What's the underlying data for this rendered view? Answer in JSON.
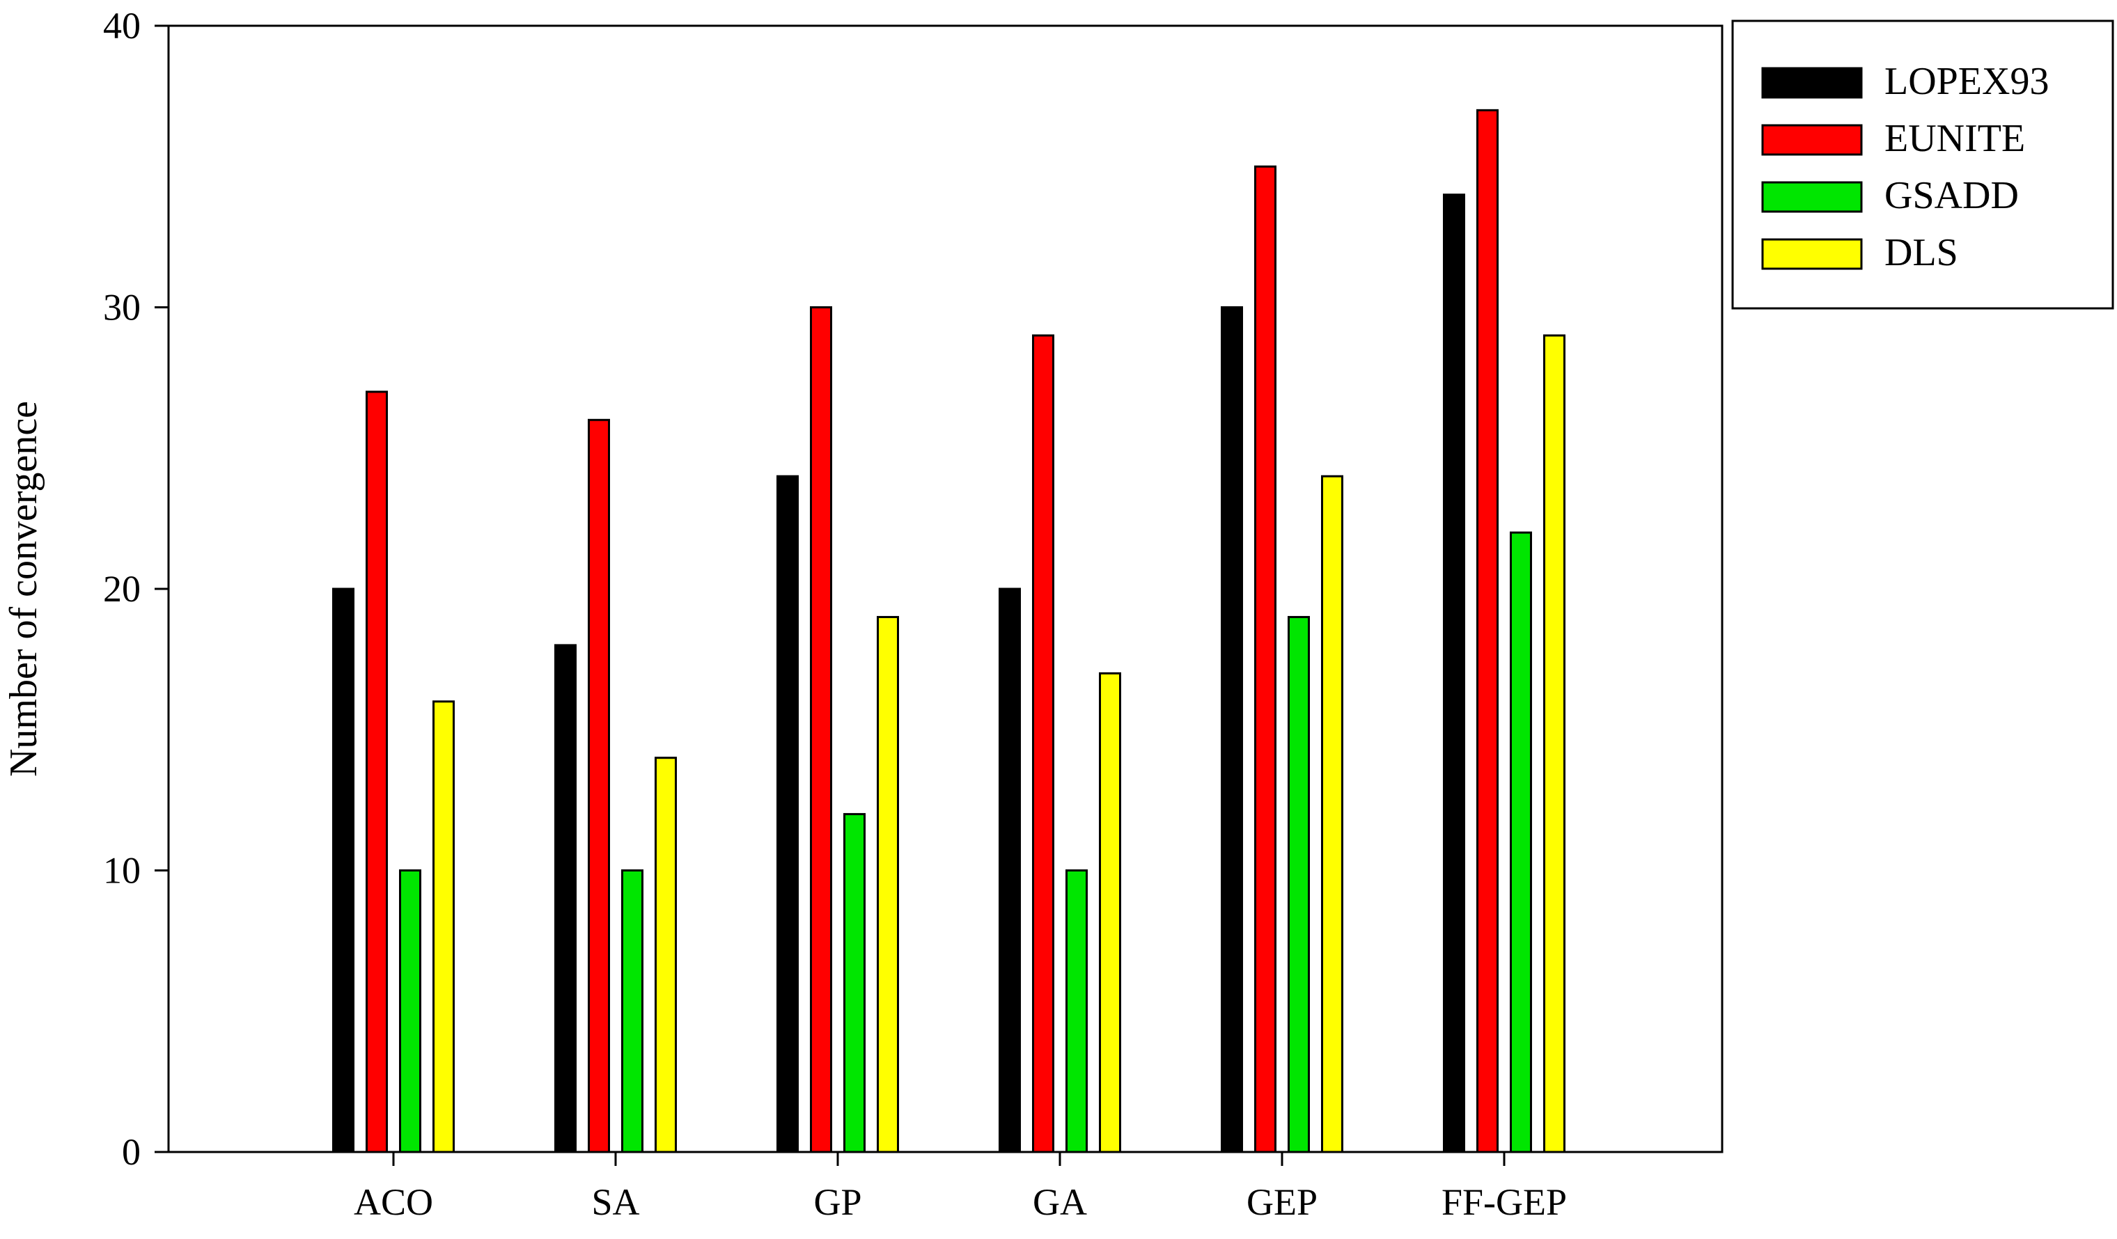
{
  "chart_data": {
    "type": "bar",
    "title": "",
    "xlabel": "",
    "ylabel": "Number of convergence",
    "categories": [
      "ACO",
      "SA",
      "GP",
      "GA",
      "GEP",
      "FF-GEP"
    ],
    "series": [
      {
        "name": "LOPEX93",
        "color": "#000000",
        "values": [
          20,
          18,
          24,
          20,
          30,
          34
        ]
      },
      {
        "name": "EUNITE",
        "color": "#ff0000",
        "values": [
          27,
          26,
          30,
          29,
          35,
          37
        ]
      },
      {
        "name": "GSADD",
        "color": "#00e600",
        "values": [
          10,
          10,
          12,
          10,
          19,
          22
        ]
      },
      {
        "name": "DLS",
        "color": "#ffff00",
        "values": [
          16,
          14,
          19,
          17,
          24,
          29
        ]
      }
    ],
    "ylim": [
      0,
      40
    ],
    "yticks": [
      0,
      10,
      20,
      30,
      40
    ],
    "grid": false,
    "legend_position": "top-right-outside"
  }
}
